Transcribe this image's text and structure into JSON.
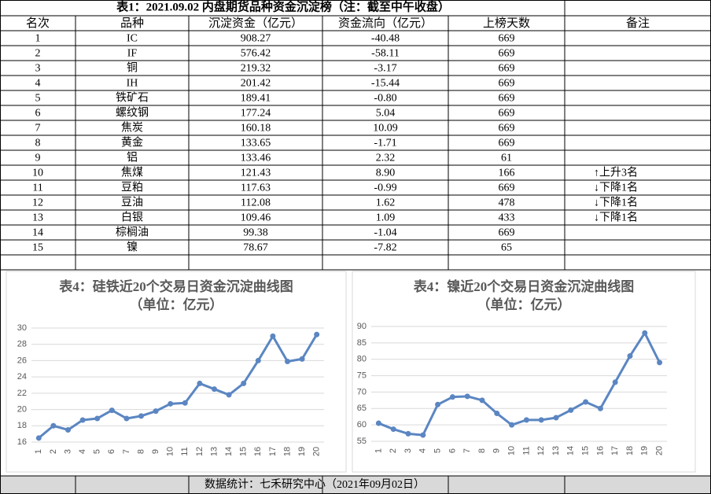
{
  "table": {
    "title": "表1：2021.09.02 内盘期货品种资金沉淀榜（注：截至中午收盘）",
    "headers": [
      "名次",
      "品种",
      "沉淀资金（亿元）",
      "资金流向（亿元）",
      "上榜天数",
      "备注"
    ],
    "rows": [
      [
        "1",
        "IC",
        "908.27",
        "-40.48",
        "669",
        ""
      ],
      [
        "2",
        "IF",
        "576.42",
        "-58.11",
        "669",
        ""
      ],
      [
        "3",
        "铜",
        "219.32",
        "-3.17",
        "669",
        ""
      ],
      [
        "4",
        "IH",
        "201.42",
        "-15.44",
        "669",
        ""
      ],
      [
        "5",
        "铁矿石",
        "189.41",
        "-0.80",
        "669",
        ""
      ],
      [
        "6",
        "螺纹钢",
        "177.24",
        "5.04",
        "669",
        ""
      ],
      [
        "7",
        "焦炭",
        "160.18",
        "10.09",
        "669",
        ""
      ],
      [
        "8",
        "黄金",
        "133.65",
        "-1.71",
        "669",
        ""
      ],
      [
        "9",
        "铝",
        "133.46",
        "2.32",
        "61",
        ""
      ],
      [
        "10",
        "焦煤",
        "121.43",
        "8.90",
        "166",
        "↑上升3名"
      ],
      [
        "11",
        "豆粕",
        "117.63",
        "-0.99",
        "669",
        "↓下降1名"
      ],
      [
        "12",
        "豆油",
        "112.08",
        "1.62",
        "478",
        "↓下降1名"
      ],
      [
        "13",
        "白银",
        "109.46",
        "1.09",
        "433",
        "↓下降1名"
      ],
      [
        "14",
        "棕榈油",
        "99.38",
        "-1.04",
        "669",
        ""
      ],
      [
        "15",
        "镍",
        "78.67",
        "-7.82",
        "65",
        ""
      ]
    ]
  },
  "chart_data": [
    {
      "type": "line",
      "title": "表4：硅铁近20个交易日资金沉淀曲线图",
      "subtitle": "（单位：亿元）",
      "categories": [
        "1",
        "2",
        "3",
        "4",
        "5",
        "6",
        "7",
        "8",
        "9",
        "10",
        "11",
        "12",
        "13",
        "14",
        "15",
        "16",
        "17",
        "18",
        "19",
        "20"
      ],
      "values": [
        16.5,
        18,
        17.5,
        18.7,
        18.9,
        19.9,
        18.9,
        19.2,
        19.8,
        20.7,
        20.8,
        23.2,
        22.5,
        21.8,
        23.2,
        26,
        29,
        25.9,
        26.2,
        29.2
      ],
      "color": "#5b86c2",
      "ylim": [
        16,
        30
      ],
      "yticks": [
        16,
        18,
        20,
        22,
        24,
        26,
        28,
        30
      ],
      "grid": true
    },
    {
      "type": "line",
      "title": "表4：镍近20个交易日资金沉淀曲线图",
      "subtitle": "（单位：亿元）",
      "categories": [
        "1",
        "2",
        "3",
        "4",
        "5",
        "6",
        "7",
        "8",
        "9",
        "10",
        "11",
        "12",
        "13",
        "14",
        "15",
        "16",
        "17",
        "18",
        "19",
        "20"
      ],
      "values": [
        60.5,
        58.7,
        57.3,
        56.9,
        66.2,
        68.5,
        68.7,
        67.5,
        63.5,
        60,
        61.5,
        61.5,
        62.2,
        64.5,
        67,
        65,
        73,
        81,
        88,
        79
      ],
      "color": "#5b86c2",
      "ylim": [
        55,
        90
      ],
      "yticks": [
        55,
        60,
        65,
        70,
        75,
        80,
        85,
        90
      ],
      "grid": true
    }
  ],
  "footer": "数据统计：七禾研究中心（2021年09月02日）"
}
